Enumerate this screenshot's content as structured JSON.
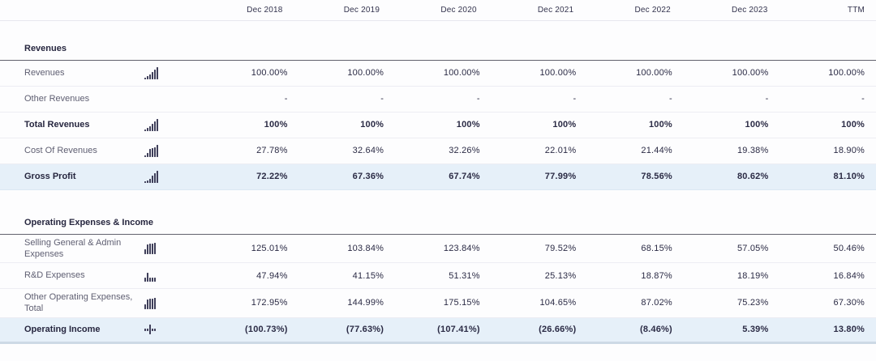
{
  "table": {
    "columns": [
      "Dec 2018",
      "Dec 2019",
      "Dec 2020",
      "Dec 2021",
      "Dec 2022",
      "Dec 2023",
      "TTM"
    ],
    "sections": [
      {
        "title": "Revenues",
        "rows": [
          {
            "label": "Revenues",
            "bold": false,
            "highlight": false,
            "icon": {
              "name": "mini-bar-chart-icon",
              "bars": [
                2,
                4,
                6,
                9,
                12,
                15
              ],
              "align": "end"
            },
            "values": [
              "100.00%",
              "100.00%",
              "100.00%",
              "100.00%",
              "100.00%",
              "100.00%",
              "100.00%"
            ]
          },
          {
            "label": "Other Revenues",
            "bold": false,
            "highlight": false,
            "icon": null,
            "values": [
              "-",
              "-",
              "-",
              "-",
              "-",
              "-",
              "-"
            ]
          },
          {
            "label": "Total Revenues",
            "bold": true,
            "highlight": false,
            "icon": {
              "name": "mini-bar-chart-icon",
              "bars": [
                2,
                4,
                6,
                9,
                12,
                15
              ],
              "align": "end"
            },
            "values": [
              "100%",
              "100%",
              "100%",
              "100%",
              "100%",
              "100%",
              "100%"
            ]
          },
          {
            "label": "Cost Of Revenues",
            "bold": false,
            "highlight": false,
            "icon": {
              "name": "mini-bar-chart-icon",
              "bars": [
                2,
                5,
                10,
                11,
                12,
                15
              ],
              "align": "end"
            },
            "values": [
              "27.78%",
              "32.64%",
              "32.26%",
              "22.01%",
              "21.44%",
              "19.38%",
              "18.90%"
            ]
          },
          {
            "label": "Gross Profit",
            "bold": true,
            "highlight": true,
            "icon": {
              "name": "mini-bar-chart-icon",
              "bars": [
                2,
                3,
                5,
                9,
                12,
                15
              ],
              "align": "end"
            },
            "values": [
              "72.22%",
              "67.36%",
              "67.74%",
              "77.99%",
              "78.56%",
              "80.62%",
              "81.10%"
            ]
          }
        ]
      },
      {
        "title": "Operating Expenses & Income",
        "rows": [
          {
            "label": "Selling General & Admin Expenses",
            "bold": false,
            "highlight": false,
            "icon": {
              "name": "mini-bar-chart-icon",
              "bars": [
                6,
                12,
                13,
                13,
                14
              ],
              "align": "end"
            },
            "values": [
              "125.01%",
              "103.84%",
              "123.84%",
              "79.52%",
              "68.15%",
              "57.05%",
              "50.46%"
            ]
          },
          {
            "label": "R&D Expenses",
            "bold": false,
            "highlight": false,
            "icon": {
              "name": "mini-bar-chart-icon",
              "bars": [
                5,
                11,
                5,
                5,
                5
              ],
              "align": "end"
            },
            "values": [
              "47.94%",
              "41.15%",
              "51.31%",
              "25.13%",
              "18.87%",
              "18.19%",
              "16.84%"
            ]
          },
          {
            "label": "Other Operating Expenses, Total",
            "bold": false,
            "highlight": false,
            "icon": {
              "name": "mini-bar-chart-icon",
              "bars": [
                6,
                12,
                13,
                13,
                14
              ],
              "align": "end"
            },
            "values": [
              "172.95%",
              "144.99%",
              "175.15%",
              "104.65%",
              "87.02%",
              "75.23%",
              "67.30%"
            ]
          },
          {
            "label": "Operating Income",
            "bold": true,
            "highlight": true,
            "icon": {
              "name": "mini-bar-chart-icon",
              "bars": [
                3,
                3,
                12,
                3,
                3
              ],
              "align": "center"
            },
            "values": [
              "(100.73%)",
              "(77.63%)",
              "(107.41%)",
              "(26.66%)",
              "(8.46%)",
              "5.39%",
              "13.80%"
            ]
          }
        ]
      }
    ]
  }
}
